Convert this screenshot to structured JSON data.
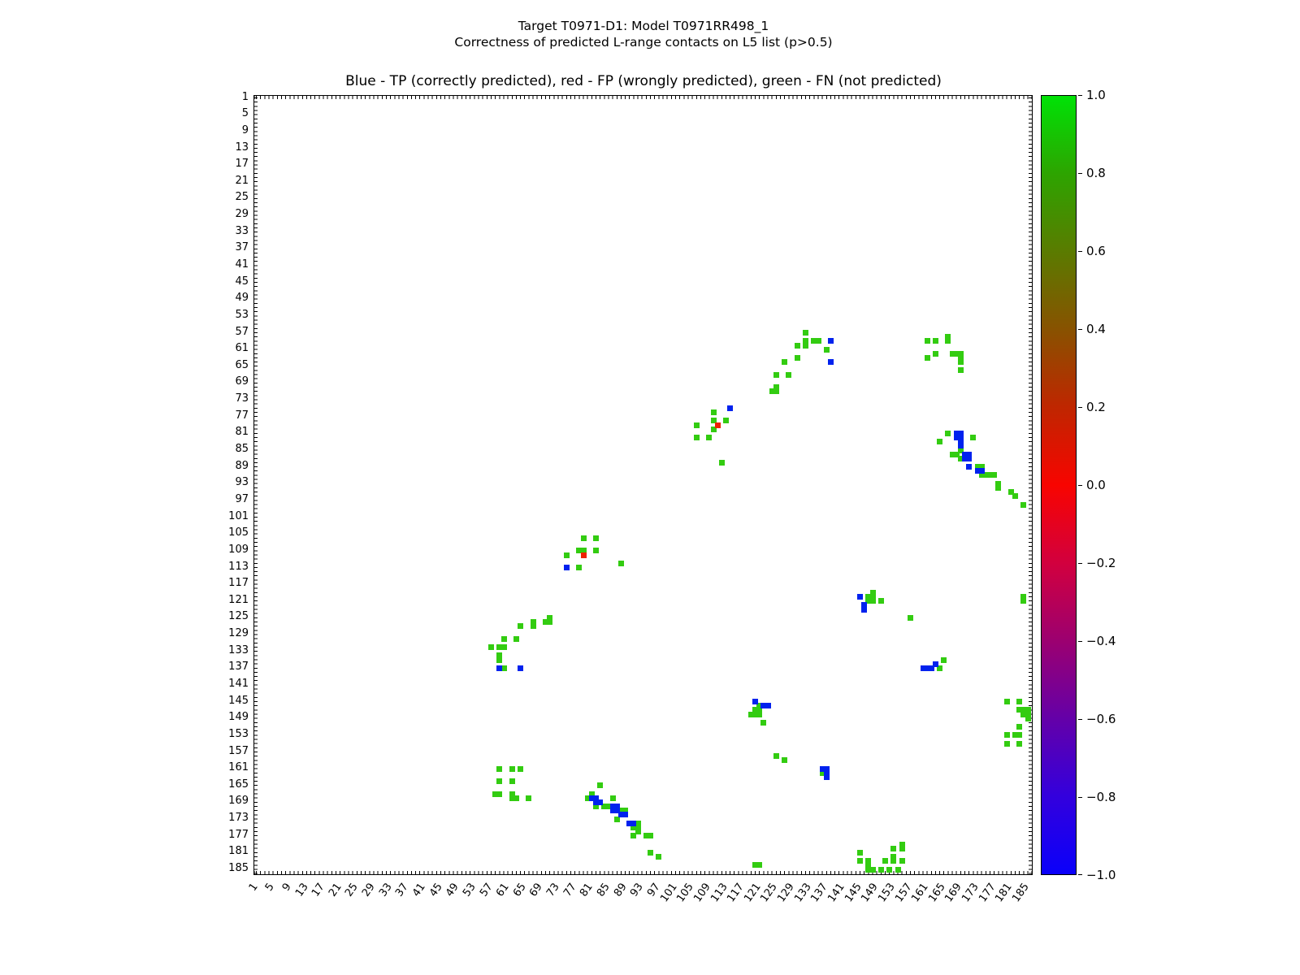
{
  "figure": {
    "title_line1": "Target T0971-D1: Model T0971RR498_1",
    "title_line2": "Correctness of predicted L-range contacts on L5 list (p>0.5)",
    "axes_title": "Blue - TP (correctly predicted), red - FP (wrongly predicted), green - FN (not predicted)"
  },
  "chart_data": {
    "type": "scatter",
    "title": "Blue - TP (correctly predicted), red - FP (wrongly predicted), green - FN (not predicted)",
    "xlabel": "",
    "ylabel": "",
    "x_axis": {
      "min": 1,
      "max": 185,
      "tick_step": 4,
      "ticks": [
        1,
        5,
        9,
        13,
        17,
        21,
        25,
        29,
        33,
        37,
        41,
        45,
        49,
        53,
        57,
        61,
        65,
        69,
        73,
        77,
        81,
        85,
        89,
        93,
        97,
        101,
        105,
        109,
        113,
        117,
        121,
        125,
        129,
        133,
        137,
        141,
        145,
        149,
        153,
        157,
        161,
        165,
        169,
        173,
        177,
        181,
        185
      ]
    },
    "y_axis": {
      "min": 1,
      "max": 185,
      "tick_step": 4,
      "inverted": true,
      "ticks": [
        1,
        5,
        9,
        13,
        17,
        21,
        25,
        29,
        33,
        37,
        41,
        45,
        49,
        53,
        57,
        61,
        65,
        69,
        73,
        77,
        81,
        85,
        89,
        93,
        97,
        101,
        105,
        109,
        113,
        117,
        121,
        125,
        129,
        133,
        137,
        141,
        145,
        149,
        153,
        157,
        161,
        165,
        169,
        173,
        177,
        181,
        185
      ]
    },
    "grid": false,
    "colorbar": {
      "min": -1.0,
      "max": 1.0,
      "tick_labels": [
        "1.0",
        "0.8",
        "0.6",
        "0.4",
        "0.2",
        "0.0",
        "−0.2",
        "−0.4",
        "−0.6",
        "−0.8",
        "−1.0"
      ],
      "tick_values": [
        1.0,
        0.8,
        0.6,
        0.4,
        0.2,
        0.0,
        -0.2,
        -0.4,
        -0.6,
        -0.8,
        -1.0
      ],
      "gradient": [
        {
          "v": 1.0,
          "c": "#00e206"
        },
        {
          "v": 0.8,
          "c": "#2da400"
        },
        {
          "v": 0.6,
          "c": "#5a7b00"
        },
        {
          "v": 0.4,
          "c": "#885200"
        },
        {
          "v": 0.2,
          "c": "#bf2600"
        },
        {
          "v": 0.0,
          "c": "#f80400"
        },
        {
          "v": -0.2,
          "c": "#d2003e"
        },
        {
          "v": -0.4,
          "c": "#9c0070"
        },
        {
          "v": -0.6,
          "c": "#6400a8"
        },
        {
          "v": -0.8,
          "c": "#3300dd"
        },
        {
          "v": -1.0,
          "c": "#0a00fa"
        }
      ]
    },
    "series": [
      {
        "name": "FN",
        "meaning": "not predicted",
        "color": "#33cc11",
        "points": [
          [
            132,
            57
          ],
          [
            132,
            59
          ],
          [
            132,
            60
          ],
          [
            134,
            59
          ],
          [
            135,
            59
          ],
          [
            130,
            60
          ],
          [
            137,
            61
          ],
          [
            130,
            63
          ],
          [
            127,
            64
          ],
          [
            125,
            67
          ],
          [
            128,
            67
          ],
          [
            125,
            70
          ],
          [
            124,
            71
          ],
          [
            125,
            71
          ],
          [
            161,
            59
          ],
          [
            163,
            59
          ],
          [
            166,
            58
          ],
          [
            166,
            59
          ],
          [
            163,
            62
          ],
          [
            161,
            63
          ],
          [
            167,
            62
          ],
          [
            168,
            62
          ],
          [
            169,
            62
          ],
          [
            169,
            63
          ],
          [
            169,
            64
          ],
          [
            169,
            66
          ],
          [
            110,
            76
          ],
          [
            113,
            78
          ],
          [
            110,
            78
          ],
          [
            110,
            80
          ],
          [
            106,
            79
          ],
          [
            106,
            82
          ],
          [
            109,
            82
          ],
          [
            112,
            88
          ],
          [
            166,
            81
          ],
          [
            164,
            83
          ],
          [
            172,
            82
          ],
          [
            169,
            85
          ],
          [
            167,
            86
          ],
          [
            168,
            86
          ],
          [
            169,
            87
          ],
          [
            173,
            89
          ],
          [
            174,
            89
          ],
          [
            174,
            91
          ],
          [
            175,
            91
          ],
          [
            176,
            91
          ],
          [
            177,
            91
          ],
          [
            178,
            93
          ],
          [
            178,
            94
          ],
          [
            181,
            95
          ],
          [
            182,
            96
          ],
          [
            184,
            98
          ],
          [
            79,
            106
          ],
          [
            82,
            106
          ],
          [
            78,
            109
          ],
          [
            79,
            109
          ],
          [
            82,
            109
          ],
          [
            75,
            110
          ],
          [
            78,
            113
          ],
          [
            88,
            112
          ],
          [
            148,
            119
          ],
          [
            147,
            120
          ],
          [
            148,
            120
          ],
          [
            147,
            121
          ],
          [
            148,
            121
          ],
          [
            150,
            121
          ],
          [
            157,
            125
          ],
          [
            184,
            120
          ],
          [
            184,
            121
          ],
          [
            71,
            125
          ],
          [
            70,
            126
          ],
          [
            71,
            126
          ],
          [
            67,
            126
          ],
          [
            67,
            127
          ],
          [
            64,
            127
          ],
          [
            60,
            130
          ],
          [
            63,
            130
          ],
          [
            57,
            132
          ],
          [
            59,
            132
          ],
          [
            60,
            132
          ],
          [
            59,
            134
          ],
          [
            59,
            135
          ],
          [
            60,
            137
          ],
          [
            165,
            135
          ],
          [
            164,
            137
          ],
          [
            121,
            146
          ],
          [
            120,
            147
          ],
          [
            121,
            147
          ],
          [
            119,
            148
          ],
          [
            120,
            148
          ],
          [
            121,
            148
          ],
          [
            122,
            150
          ],
          [
            180,
            145
          ],
          [
            183,
            145
          ],
          [
            183,
            147
          ],
          [
            184,
            147
          ],
          [
            185,
            147
          ],
          [
            184,
            148
          ],
          [
            185,
            148
          ],
          [
            185,
            149
          ],
          [
            183,
            151
          ],
          [
            180,
            153
          ],
          [
            182,
            153
          ],
          [
            183,
            153
          ],
          [
            180,
            155
          ],
          [
            183,
            155
          ],
          [
            125,
            158
          ],
          [
            127,
            159
          ],
          [
            136,
            162
          ],
          [
            59,
            161
          ],
          [
            62,
            161
          ],
          [
            64,
            161
          ],
          [
            59,
            164
          ],
          [
            62,
            164
          ],
          [
            58,
            167
          ],
          [
            59,
            167
          ],
          [
            62,
            167
          ],
          [
            62,
            168
          ],
          [
            63,
            168
          ],
          [
            66,
            168
          ],
          [
            83,
            165
          ],
          [
            81,
            167
          ],
          [
            80,
            168
          ],
          [
            86,
            168
          ],
          [
            82,
            170
          ],
          [
            84,
            170
          ],
          [
            85,
            170
          ],
          [
            88,
            171
          ],
          [
            89,
            171
          ],
          [
            87,
            173
          ],
          [
            92,
            174
          ],
          [
            91,
            175
          ],
          [
            92,
            175
          ],
          [
            92,
            176
          ],
          [
            91,
            177
          ],
          [
            94,
            177
          ],
          [
            95,
            177
          ],
          [
            95,
            181
          ],
          [
            97,
            182
          ],
          [
            120,
            184
          ],
          [
            121,
            184
          ],
          [
            145,
            181
          ],
          [
            145,
            183
          ],
          [
            147,
            183
          ],
          [
            147,
            184
          ],
          [
            147,
            185
          ],
          [
            148,
            185
          ],
          [
            150,
            185
          ],
          [
            151,
            183
          ],
          [
            152,
            185
          ],
          [
            153,
            180
          ],
          [
            153,
            182
          ],
          [
            153,
            183
          ],
          [
            154,
            185
          ],
          [
            155,
            179
          ],
          [
            155,
            180
          ],
          [
            155,
            183
          ]
        ]
      },
      {
        "name": "FP",
        "meaning": "wrongly predicted",
        "color": "#ee2200",
        "points": [
          [
            111,
            79
          ],
          [
            79,
            110
          ]
        ]
      },
      {
        "name": "TP",
        "meaning": "correctly predicted",
        "color": "#0022ee",
        "points": [
          [
            138,
            59
          ],
          [
            138,
            64
          ],
          [
            114,
            75
          ],
          [
            168,
            81
          ],
          [
            169,
            81
          ],
          [
            168,
            82
          ],
          [
            169,
            82
          ],
          [
            169,
            83
          ],
          [
            169,
            84
          ],
          [
            170,
            86
          ],
          [
            171,
            86
          ],
          [
            170,
            87
          ],
          [
            171,
            87
          ],
          [
            171,
            89
          ],
          [
            173,
            90
          ],
          [
            174,
            90
          ],
          [
            75,
            113
          ],
          [
            145,
            120
          ],
          [
            146,
            122
          ],
          [
            146,
            123
          ],
          [
            59,
            137
          ],
          [
            64,
            137
          ],
          [
            163,
            136
          ],
          [
            160,
            137
          ],
          [
            161,
            137
          ],
          [
            162,
            137
          ],
          [
            120,
            145
          ],
          [
            122,
            146
          ],
          [
            123,
            146
          ],
          [
            136,
            161
          ],
          [
            137,
            161
          ],
          [
            137,
            162
          ],
          [
            137,
            163
          ],
          [
            81,
            168
          ],
          [
            82,
            168
          ],
          [
            82,
            169
          ],
          [
            83,
            169
          ],
          [
            86,
            170
          ],
          [
            87,
            170
          ],
          [
            86,
            171
          ],
          [
            87,
            171
          ],
          [
            88,
            172
          ],
          [
            89,
            172
          ],
          [
            90,
            174
          ],
          [
            91,
            174
          ]
        ]
      }
    ]
  }
}
